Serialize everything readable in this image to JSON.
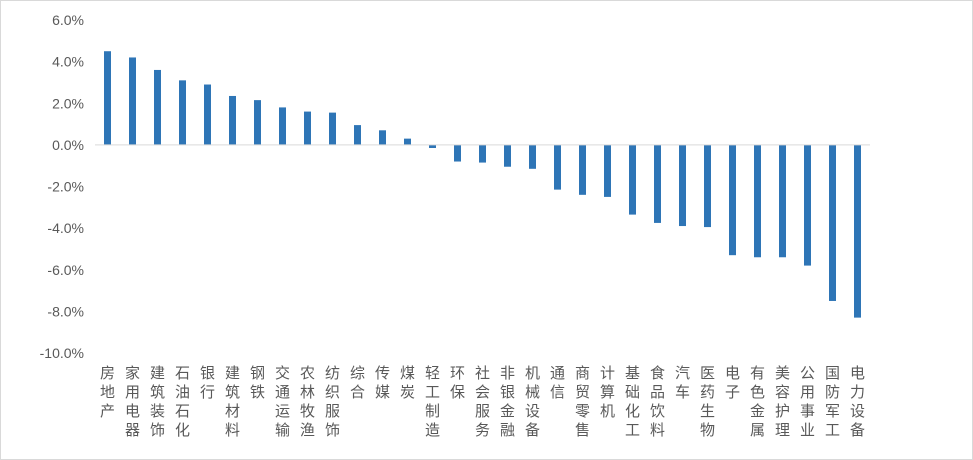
{
  "chart_data": {
    "type": "bar",
    "title": "",
    "xlabel": "",
    "ylabel": "",
    "ylim": [
      -10,
      6
    ],
    "yticks": [
      "6.0%",
      "4.0%",
      "2.0%",
      "0.0%",
      "-2.0%",
      "-4.0%",
      "-6.0%",
      "-8.0%",
      "-10.0%"
    ],
    "grid": false,
    "bar_color": "#2e75b6",
    "categories": [
      "房地产",
      "家用电器",
      "建筑装饰",
      "石油石化",
      "银行",
      "建筑材料",
      "钢铁",
      "交通运输",
      "农林牧渔",
      "纺织服饰",
      "综合",
      "传媒",
      "煤炭",
      "轻工制造",
      "环保",
      "社会服务",
      "非银金融",
      "机械设备",
      "通信",
      "商贸零售",
      "计算机",
      "基础化工",
      "食品饮料",
      "汽车",
      "医药生物",
      "电子",
      "有色金属",
      "美容护理",
      "公用事业",
      "国防军工",
      "电力设备"
    ],
    "values": [
      4.5,
      4.2,
      3.6,
      3.1,
      2.9,
      2.35,
      2.15,
      1.8,
      1.6,
      1.55,
      0.95,
      0.7,
      0.3,
      -0.15,
      -0.8,
      -0.85,
      -1.05,
      -1.15,
      -2.15,
      -2.4,
      -2.5,
      -3.35,
      -3.75,
      -3.9,
      -3.95,
      -5.3,
      -5.4,
      -5.4,
      -5.8,
      -7.5,
      -8.3
    ]
  }
}
